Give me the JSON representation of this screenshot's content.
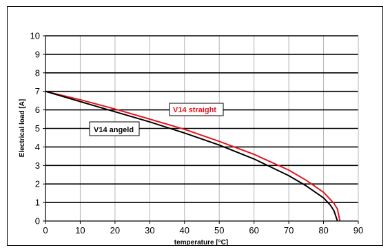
{
  "chart_data": {
    "type": "line",
    "title": "",
    "xlabel": "temperature [°C]",
    "ylabel": "Electrical load [A]",
    "xlim": [
      0,
      90
    ],
    "ylim": [
      0,
      10
    ],
    "x_ticks": [
      "0",
      "10",
      "20",
      "30",
      "40",
      "50",
      "60",
      "70",
      "80",
      "90"
    ],
    "y_ticks": [
      "0",
      "1",
      "2",
      "3",
      "4",
      "5",
      "6",
      "7",
      "8",
      "9",
      "10"
    ],
    "grid": true,
    "series": [
      {
        "name": "V14 angeld",
        "color": "#000000",
        "x": [
          0,
          10,
          20,
          30,
          40,
          50,
          60,
          70,
          75,
          80,
          82,
          83,
          84
        ],
        "y": [
          7.0,
          6.45,
          5.9,
          5.35,
          4.75,
          4.1,
          3.35,
          2.45,
          1.9,
          1.25,
          0.85,
          0.55,
          0.0
        ]
      },
      {
        "name": "V14 straight",
        "color": "#e8141e",
        "x": [
          0,
          10,
          20,
          30,
          40,
          50,
          60,
          70,
          75,
          80,
          83,
          84,
          84.7
        ],
        "y": [
          7.0,
          6.55,
          6.05,
          5.5,
          4.95,
          4.3,
          3.6,
          2.75,
          2.2,
          1.55,
          0.95,
          0.65,
          0.0
        ]
      }
    ],
    "annotations": [
      "V14 straight",
      "V14 angeld"
    ]
  }
}
